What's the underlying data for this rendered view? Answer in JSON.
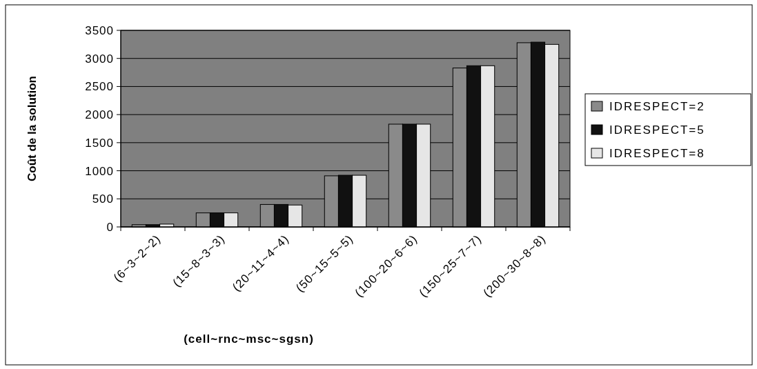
{
  "chart_data": {
    "type": "bar",
    "xlabel": "(cell~rnc~msc~sgsn)",
    "ylabel": "Coût de la solution",
    "categories": [
      "(6~3~2~2)",
      "(15~8~3~3)",
      "(20~11~4~4)",
      "(50~15~5~5)",
      "(100~20~6~6)",
      "(150~25~7~7)",
      "(200~30~8~8)"
    ],
    "series": [
      {
        "name": "IDRESPECT=2",
        "color": "#8a8a8a",
        "values": [
          40,
          250,
          400,
          910,
          1830,
          2830,
          3280
        ]
      },
      {
        "name": "IDRESPECT=5",
        "color": "#111111",
        "values": [
          40,
          250,
          400,
          920,
          1830,
          2870,
          3290
        ]
      },
      {
        "name": "IDRESPECT=8",
        "color": "#e6e6e6",
        "values": [
          50,
          250,
          390,
          920,
          1830,
          2870,
          3250
        ]
      }
    ],
    "ylim": [
      0,
      3500
    ],
    "yticks": [
      0,
      500,
      1000,
      1500,
      2000,
      2500,
      3000,
      3500
    ],
    "grid": "y",
    "legend": "right"
  }
}
